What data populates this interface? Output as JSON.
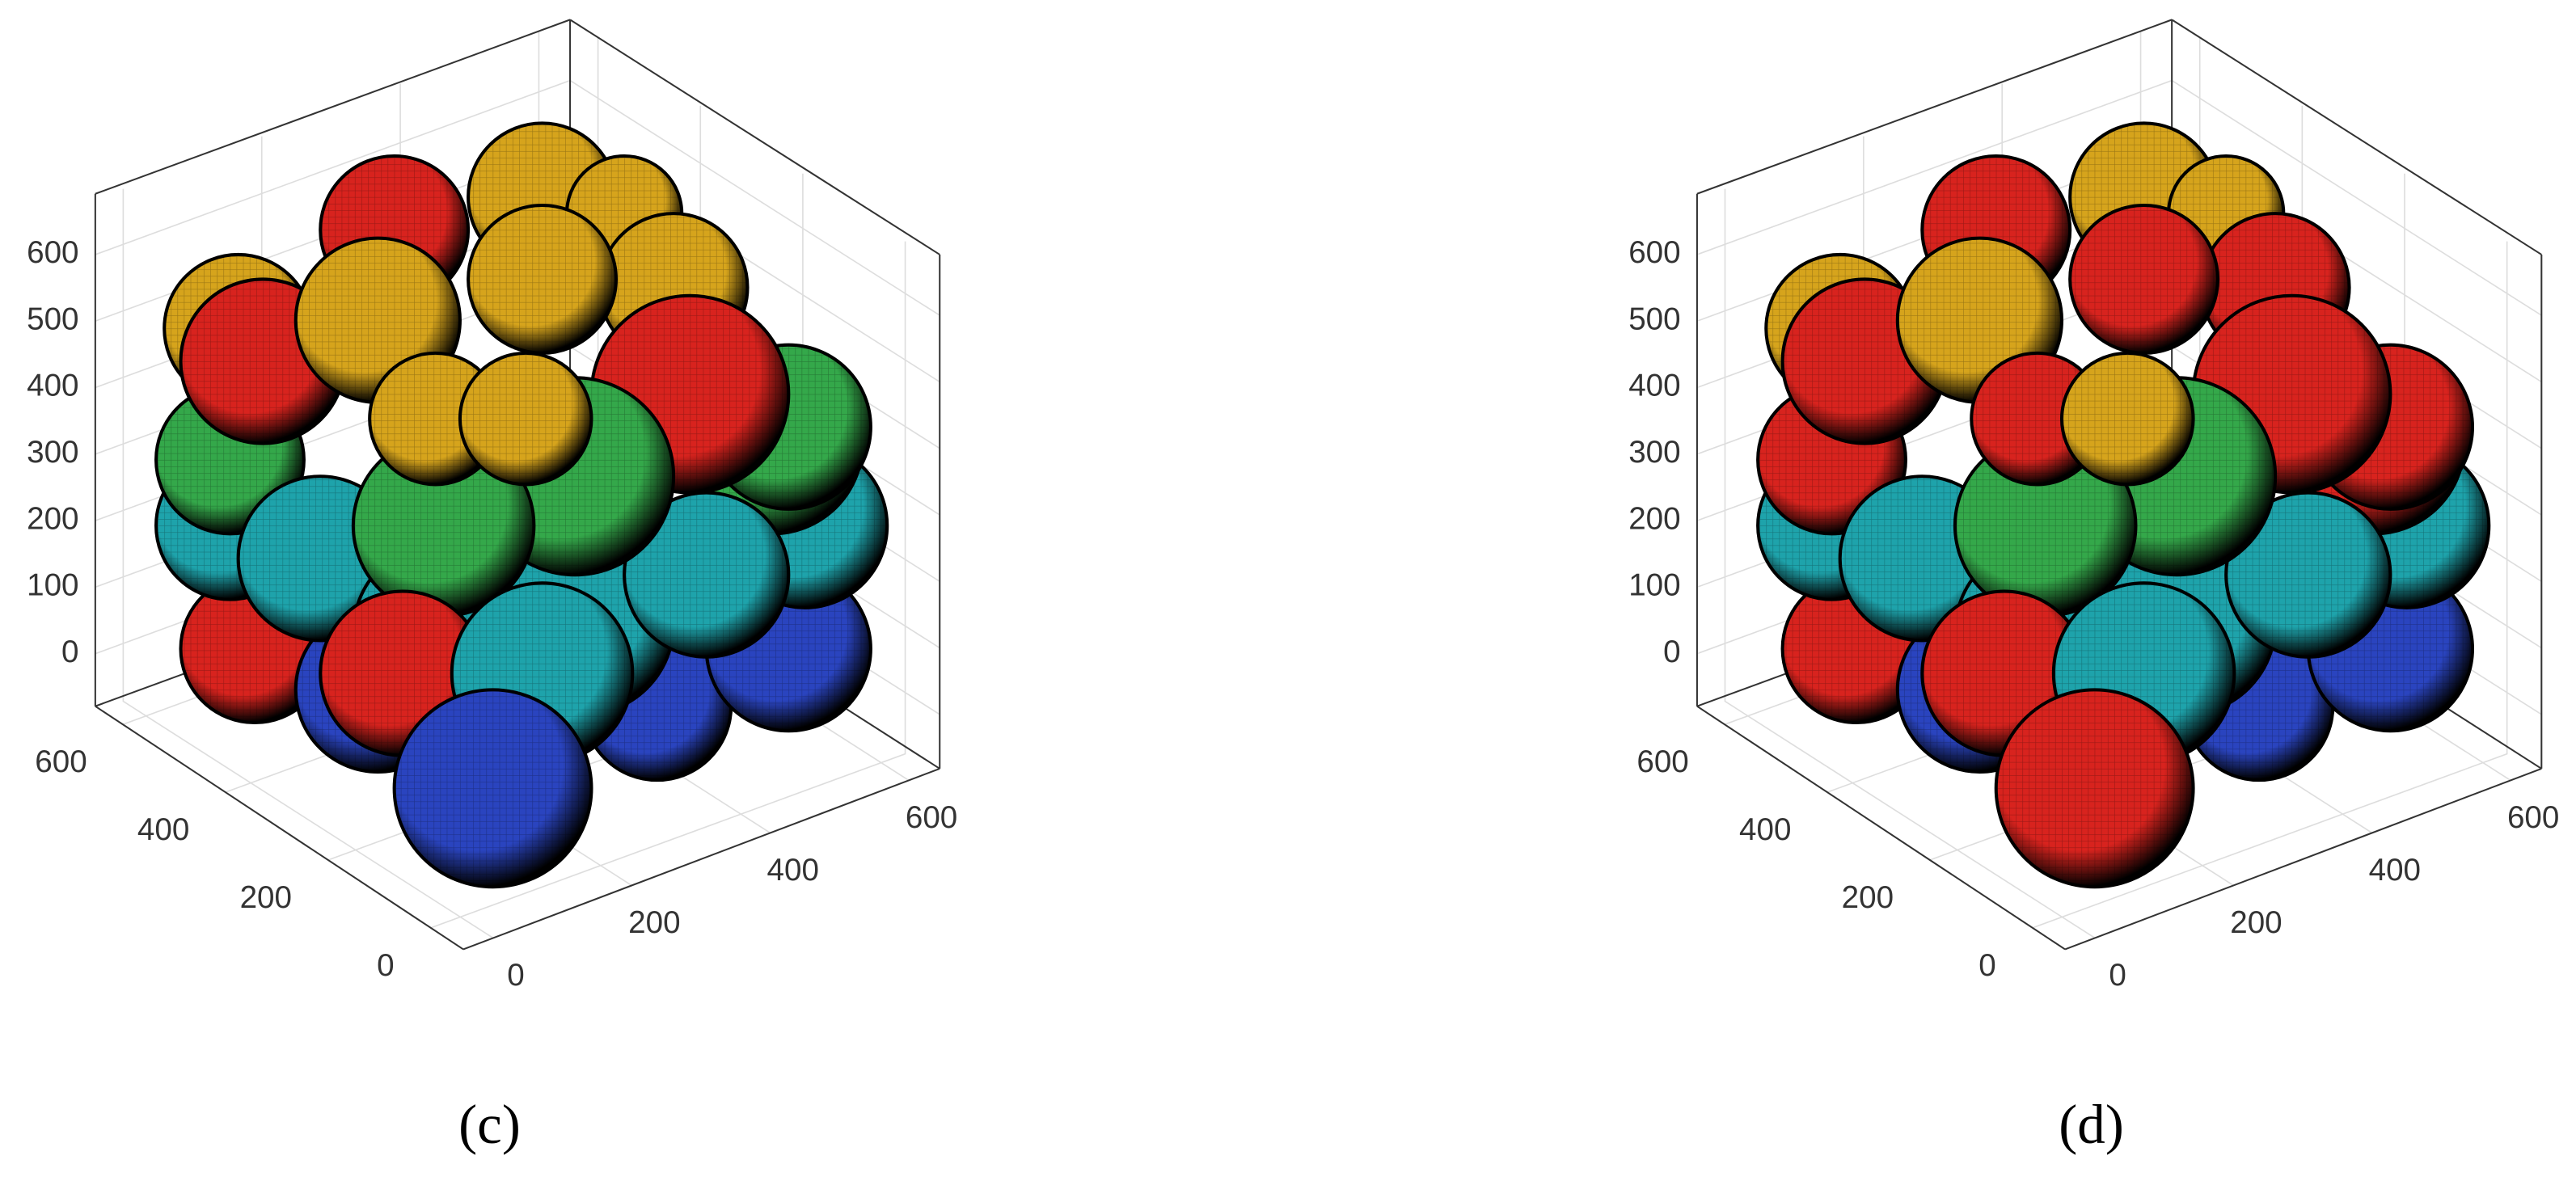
{
  "panels": [
    {
      "label": "(c)",
      "z_ticks": [
        0,
        100,
        200,
        300,
        400,
        500,
        600
      ],
      "y_ticks": [
        0,
        200,
        400,
        600
      ],
      "x_ticks": [
        0,
        200,
        400,
        600
      ]
    },
    {
      "label": "(d)",
      "z_ticks": [
        0,
        100,
        200,
        300,
        400,
        500,
        600
      ],
      "y_ticks": [
        0,
        200,
        400,
        600
      ],
      "x_ticks": [
        0,
        200,
        400,
        600
      ]
    }
  ]
}
